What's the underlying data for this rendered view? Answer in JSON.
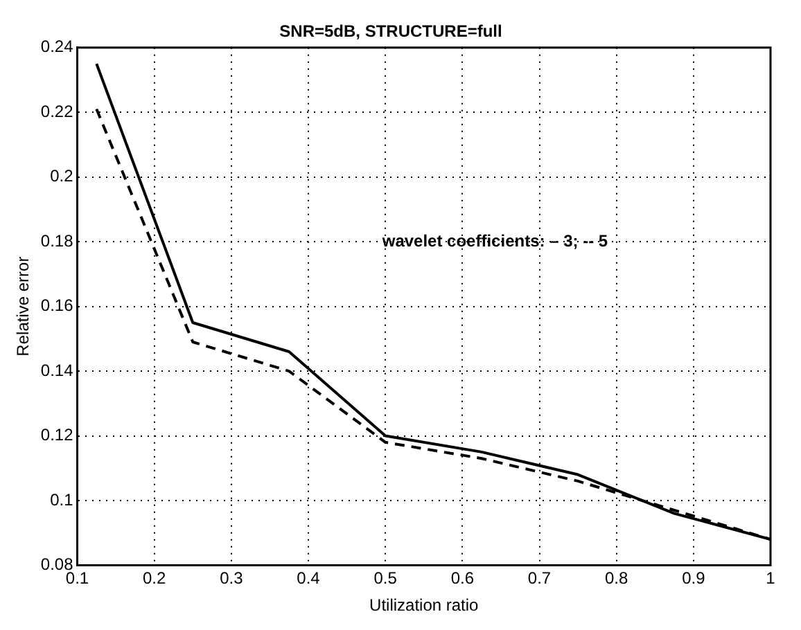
{
  "chart_data": {
    "type": "line",
    "title": "SNR=5dB, STRUCTURE=full",
    "xlabel": "Utilization ratio",
    "ylabel": "Relative error",
    "annotations": [
      "wavelet coefficients: – 3; -- 5"
    ],
    "x": [
      0.125,
      0.25,
      0.375,
      0.5,
      0.625,
      0.75,
      0.875,
      1
    ],
    "series": [
      {
        "color": "#000000",
        "line_style": "solid",
        "values": [
          0.235,
          0.155,
          0.146,
          0.12,
          0.115,
          0.108,
          0.096,
          0.088
        ]
      },
      {
        "color": "#000000",
        "line_style": "dashed",
        "values": [
          0.221,
          0.149,
          0.14,
          0.118,
          0.113,
          0.106,
          0.097,
          0.088
        ]
      }
    ],
    "xlim": [
      0.1,
      1
    ],
    "xticks": [
      0.1,
      0.2,
      0.3,
      0.4,
      0.5,
      0.6,
      0.7,
      0.8,
      0.9,
      1
    ],
    "ylim": [
      0.08,
      0.24
    ],
    "yticks": [
      0.08,
      0.1,
      0.12,
      0.14,
      0.16,
      0.18,
      0.2,
      0.22,
      0.24
    ],
    "grid": true,
    "marker": "none",
    "legend": false
  }
}
